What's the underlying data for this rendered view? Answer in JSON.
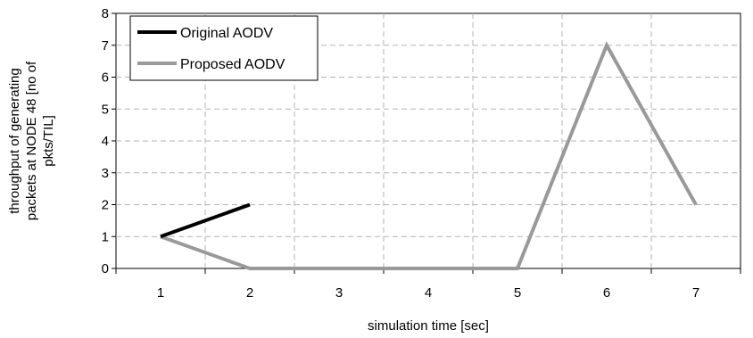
{
  "chart_data": {
    "type": "line",
    "title": "",
    "xlabel": "simulation time [sec]",
    "ylabel_lines": [
      "throughput of generating",
      "packets at NODE 48 [no of",
      "pkts/TIL]"
    ],
    "categories": [
      "1",
      "2",
      "3",
      "4",
      "5",
      "6",
      "7"
    ],
    "yticks": [
      "0",
      "1",
      "2",
      "3",
      "4",
      "5",
      "6",
      "7",
      "8"
    ],
    "ylim": [
      0,
      8
    ],
    "grid": true,
    "legend_position": "top-left",
    "series": [
      {
        "name": "Original AODV",
        "color": "#000000",
        "x": [
          1,
          2
        ],
        "values": [
          1,
          2
        ]
      },
      {
        "name": "Proposed AODV",
        "color": "#999999",
        "x": [
          1,
          2,
          3,
          4,
          5,
          6,
          7
        ],
        "values": [
          1,
          0,
          0,
          0,
          0,
          7,
          2
        ]
      }
    ]
  }
}
